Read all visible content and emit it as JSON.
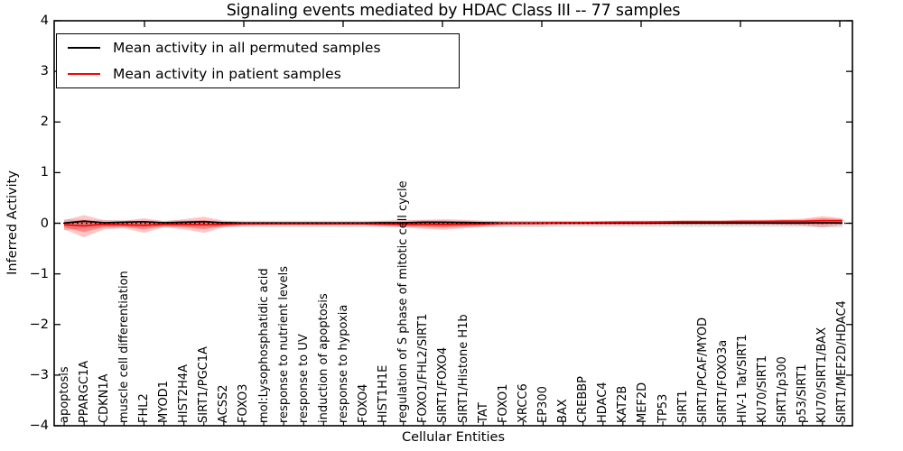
{
  "title": "Signaling events mediated by HDAC Class III -- 77 samples",
  "legend": {
    "items": [
      {
        "label": "Mean activity in all permuted samples",
        "color": "#000000"
      },
      {
        "label": "Mean activity in patient samples",
        "color": "#ff0000"
      }
    ]
  },
  "colors": {
    "permuted_line": "#000000",
    "patient_line": "#ff0000",
    "permuted_band": "rgba(110,110,110,0.22)",
    "patient_band_outer": "rgba(255,0,0,0.22)",
    "patient_band_inner": "rgba(255,0,0,0.30)",
    "frame": "#000000",
    "zero_line": "#000000"
  },
  "chart_data": {
    "type": "line",
    "title": "Signaling events mediated by HDAC Class III -- 77 samples",
    "xlabel": "Cellular Entities",
    "ylabel": "Inferred Activity",
    "ylim": [
      -4,
      4
    ],
    "yticks": [
      -4,
      -3,
      -2,
      -1,
      0,
      1,
      2,
      3,
      4
    ],
    "grid": false,
    "legend_position": "upper left",
    "zero_reference_line": 0,
    "categories": [
      "apoptosis",
      "PPARGC1A",
      "CDKN1A",
      "muscle cell differentiation",
      "FHL2",
      "MYOD1",
      "HIST2H4A",
      "SIRT1/PGC1A",
      "ACSS2",
      "FOXO3",
      "mol:Lysophosphatidic acid",
      "response to nutrient levels",
      "response to UV",
      "induction of apoptosis",
      "response to hypoxia",
      "FOXO4",
      "HIST1H1E",
      "regulation of S phase of mitotic cell cycle",
      "FOXO1/FHL2/SIRT1",
      "SIRT1/FOXO4",
      "SIRT1/Histone H1b",
      "TAT",
      "FOXO1",
      "XRCC6",
      "EP300",
      "BAX",
      "CREBBP",
      "HDAC4",
      "KAT2B",
      "MEF2D",
      "TP53",
      "SIRT1",
      "SIRT1/PCAF/MYOD",
      "SIRT1/FOXO3a",
      "HIV-1 Tat/SIRT1",
      "KU70/SIRT1",
      "SIRT1/p300",
      "p53/SIRT1",
      "KU70/SIRT1/BAX",
      "SIRT1/MEF2D/HDAC4"
    ],
    "series": [
      {
        "name": "Mean activity in all permuted samples",
        "style": "line",
        "values": [
          0.005,
          0.04,
          0.01,
          0.02,
          0.03,
          0.01,
          0.02,
          0.03,
          0.01,
          0.005,
          0.005,
          0.005,
          0.005,
          0.005,
          0.005,
          0.005,
          0.01,
          0.01,
          0.02,
          0.02,
          0.015,
          0.01,
          0.005,
          0.005,
          0.005,
          0.005,
          0.005,
          0.005,
          0.005,
          0.005,
          0.005,
          0.005,
          0.005,
          0.005,
          0.005,
          0.005,
          0.005,
          0.005,
          0.01,
          0.005
        ]
      },
      {
        "name": "Mean activity in patient samples",
        "style": "line",
        "values": [
          -0.03,
          -0.05,
          -0.02,
          -0.03,
          -0.04,
          -0.02,
          -0.02,
          -0.03,
          -0.02,
          -0.01,
          -0.01,
          -0.01,
          -0.01,
          -0.01,
          -0.01,
          -0.01,
          -0.015,
          -0.02,
          -0.02,
          -0.025,
          -0.02,
          -0.015,
          0.0,
          0.0,
          0.005,
          0.01,
          0.01,
          0.015,
          0.02,
          0.02,
          0.025,
          0.03,
          0.03,
          0.03,
          0.035,
          0.035,
          0.04,
          0.04,
          0.05,
          0.05
        ]
      },
      {
        "name": "Permuted samples activity range",
        "style": "band",
        "upper": [
          0.08,
          0.07,
          0.06,
          0.06,
          0.06,
          0.05,
          0.06,
          0.06,
          0.05,
          0.05,
          0.05,
          0.05,
          0.05,
          0.05,
          0.05,
          0.05,
          0.05,
          0.05,
          0.06,
          0.06,
          0.05,
          0.05,
          0.05,
          0.05,
          0.05,
          0.05,
          0.05,
          0.05,
          0.05,
          0.05,
          0.05,
          0.05,
          0.05,
          0.05,
          0.05,
          0.05,
          0.05,
          0.05,
          0.05,
          0.05
        ],
        "lower": [
          -0.14,
          -0.1,
          -0.09,
          -0.08,
          -0.08,
          -0.08,
          -0.08,
          -0.08,
          -0.08,
          -0.08,
          -0.08,
          -0.08,
          -0.08,
          -0.08,
          -0.08,
          -0.08,
          -0.08,
          -0.08,
          -0.08,
          -0.09,
          -0.08,
          -0.08,
          -0.08,
          -0.08,
          -0.08,
          -0.07,
          -0.07,
          -0.07,
          -0.07,
          -0.07,
          -0.07,
          -0.07,
          -0.07,
          -0.07,
          -0.07,
          -0.07,
          -0.07,
          -0.07,
          -0.08,
          -0.08
        ]
      },
      {
        "name": "Patient samples activity range",
        "style": "band",
        "upper": [
          0.06,
          0.16,
          0.06,
          0.05,
          0.1,
          0.04,
          0.08,
          0.13,
          0.05,
          0.03,
          0.03,
          0.03,
          0.03,
          0.03,
          0.03,
          0.03,
          0.05,
          0.06,
          0.07,
          0.08,
          0.07,
          0.05,
          0.04,
          0.04,
          0.04,
          0.04,
          0.04,
          0.04,
          0.05,
          0.05,
          0.05,
          0.06,
          0.06,
          0.06,
          0.07,
          0.07,
          0.08,
          0.09,
          0.14,
          0.1
        ],
        "lower": [
          -0.12,
          -0.28,
          -0.12,
          -0.1,
          -0.19,
          -0.08,
          -0.12,
          -0.19,
          -0.08,
          -0.05,
          -0.04,
          -0.04,
          -0.04,
          -0.04,
          -0.04,
          -0.04,
          -0.06,
          -0.08,
          -0.11,
          -0.13,
          -0.1,
          -0.07,
          -0.05,
          -0.04,
          -0.04,
          -0.03,
          -0.03,
          -0.03,
          -0.03,
          -0.03,
          -0.02,
          -0.02,
          -0.02,
          -0.02,
          -0.02,
          -0.02,
          -0.03,
          -0.04,
          -0.08,
          -0.03
        ]
      }
    ]
  }
}
